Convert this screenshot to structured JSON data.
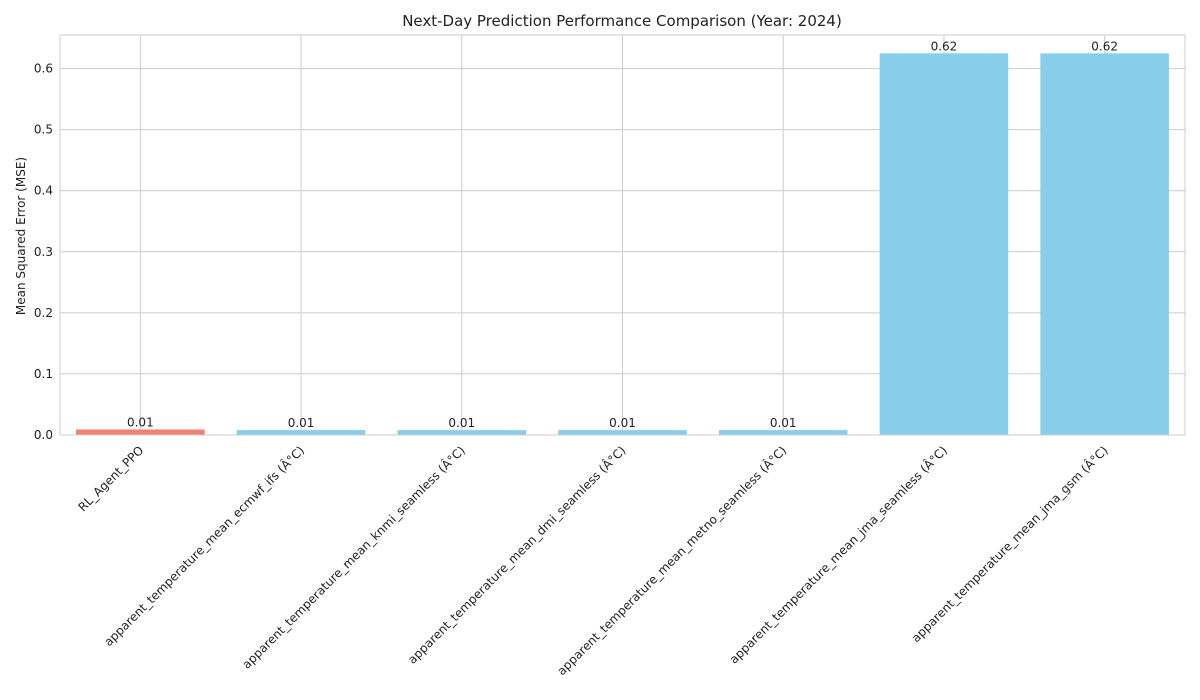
{
  "chart_data": {
    "type": "bar",
    "title": "Next-Day Prediction Performance Comparison (Year: 2024)",
    "xlabel": "",
    "ylabel": "Mean Squared Error (MSE)",
    "ylim": [
      0,
      0.655
    ],
    "yticks": [
      0.0,
      0.1,
      0.2,
      0.3,
      0.4,
      0.5,
      0.6
    ],
    "ytick_labels": [
      "0.0",
      "0.1",
      "0.2",
      "0.3",
      "0.4",
      "0.5",
      "0.6"
    ],
    "grid": true,
    "categories": [
      "RL_Agent_PPO",
      "apparent_temperature_mean_ecmwf_ifs (Â°C)",
      "apparent_temperature_mean_knmi_seamless (Â°C)",
      "apparent_temperature_mean_dmi_seamless (Â°C)",
      "apparent_temperature_mean_metno_seamless (Â°C)",
      "apparent_temperature_mean_jma_seamless (Â°C)",
      "apparent_temperature_mean_jma_gsm (Â°C)"
    ],
    "values": [
      0.009,
      0.008,
      0.008,
      0.008,
      0.008,
      0.625,
      0.625
    ],
    "value_labels": [
      "0.01",
      "0.01",
      "0.01",
      "0.01",
      "0.01",
      "0.62",
      "0.62"
    ],
    "colors": [
      "#f08072",
      "#87ceeb",
      "#87ceeb",
      "#87ceeb",
      "#87ceeb",
      "#87ceeb",
      "#87ceeb"
    ]
  }
}
